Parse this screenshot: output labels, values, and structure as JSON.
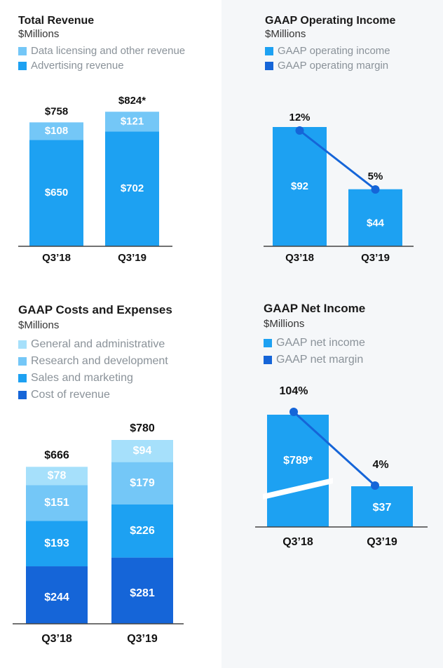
{
  "colors": {
    "data_licensing": "#74c7f7",
    "advertising": "#1da1f2",
    "op_income": "#1da1f2",
    "op_margin": "#1565d8",
    "ga": "#a6e0fb",
    "rd": "#74c7f7",
    "sm": "#1da1f2",
    "cor": "#1565d8",
    "axis": "#444444"
  },
  "chart_data": [
    {
      "id": "revenue",
      "type": "bar",
      "stacked": true,
      "title": "Total Revenue",
      "subtitle": "$Millions",
      "categories": [
        "Q3’18",
        "Q3’19"
      ],
      "series": [
        {
          "name": "Advertising revenue",
          "values": [
            650,
            702
          ],
          "labels": [
            "$650",
            "$702"
          ]
        },
        {
          "name": "Data licensing and other revenue",
          "values": [
            108,
            121
          ],
          "labels": [
            "$108",
            "$121"
          ]
        }
      ],
      "legend": [
        "Data licensing and other revenue",
        "Advertising revenue"
      ],
      "totals": [
        "$758",
        "$824*"
      ]
    },
    {
      "id": "operating",
      "type": "bar",
      "title": "GAAP Operating Income",
      "subtitle": "$Millions",
      "categories": [
        "Q3’18",
        "Q3’19"
      ],
      "series": [
        {
          "name": "GAAP operating income",
          "values": [
            92,
            44
          ],
          "labels": [
            "$92",
            "$44"
          ]
        },
        {
          "name": "GAAP operating margin",
          "type": "line",
          "values": [
            12,
            5
          ],
          "labels": [
            "12%",
            "5%"
          ]
        }
      ],
      "legend": [
        "GAAP operating income",
        "GAAP operating margin"
      ]
    },
    {
      "id": "costs",
      "type": "bar",
      "stacked": true,
      "title": "GAAP Costs and Expenses",
      "subtitle": "$Millions",
      "categories": [
        "Q3’18",
        "Q3’19"
      ],
      "series": [
        {
          "name": "Cost of revenue",
          "values": [
            244,
            281
          ],
          "labels": [
            "$244",
            "$281"
          ]
        },
        {
          "name": "Sales and marketing",
          "values": [
            193,
            226
          ],
          "labels": [
            "$193",
            "$226"
          ]
        },
        {
          "name": "Research and development",
          "values": [
            151,
            179
          ],
          "labels": [
            "$151",
            "$179"
          ]
        },
        {
          "name": "General and administrative",
          "values": [
            78,
            94
          ],
          "labels": [
            "$78",
            "$94"
          ]
        }
      ],
      "legend": [
        "General and administrative",
        "Research and development",
        "Sales and marketing",
        "Cost of revenue"
      ],
      "totals": [
        "$666",
        "$780"
      ]
    },
    {
      "id": "netincome",
      "type": "bar",
      "title": "GAAP Net Income",
      "subtitle": "$Millions",
      "categories": [
        "Q3’18",
        "Q3’19"
      ],
      "axis_break": true,
      "series": [
        {
          "name": "GAAP net income",
          "values": [
            789,
            37
          ],
          "labels": [
            "$789*",
            "$37"
          ]
        },
        {
          "name": "GAAP net margin",
          "type": "line",
          "values": [
            104,
            4
          ],
          "labels": [
            "104%",
            "4%"
          ]
        }
      ],
      "legend": [
        "GAAP net income",
        "GAAP net margin"
      ]
    }
  ]
}
